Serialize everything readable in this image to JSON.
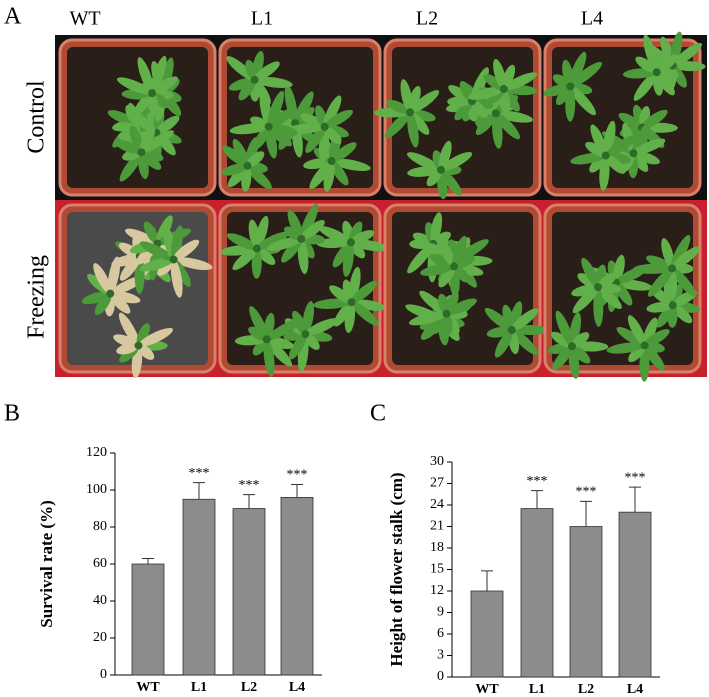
{
  "photo_panel": {
    "label": "A",
    "columns": [
      "WT",
      "L1",
      "L2",
      "L4"
    ],
    "rows": [
      "Control",
      "Freezing"
    ]
  },
  "chart_data": [
    {
      "type": "bar",
      "panel_label": "B",
      "y_label": "Survival rate (%)",
      "categories": [
        "WT",
        "L1",
        "L2",
        "L4"
      ],
      "values": [
        60,
        95,
        90,
        96
      ],
      "errors": [
        3,
        9,
        7.5,
        7
      ],
      "value_annotations": [
        null,
        "***",
        "***",
        "***"
      ],
      "color": "#8c8c8c",
      "ylim": [
        0,
        120
      ],
      "yticks": [
        0,
        20,
        40,
        60,
        80,
        100,
        120
      ]
    },
    {
      "type": "bar",
      "panel_label": "C",
      "y_label": "Height of flower stalk (cm)",
      "categories": [
        "WT",
        "L1",
        "L2",
        "L4"
      ],
      "values": [
        12,
        23.5,
        21,
        23
      ],
      "errors": [
        2.8,
        2.5,
        3.5,
        3.5
      ],
      "value_annotations": [
        null,
        "***",
        "***",
        "***"
      ],
      "color": "#8c8c8c",
      "ylim": [
        0,
        30
      ],
      "yticks": [
        0,
        3,
        6,
        9,
        12,
        15,
        18,
        21,
        24,
        27,
        30
      ]
    }
  ]
}
